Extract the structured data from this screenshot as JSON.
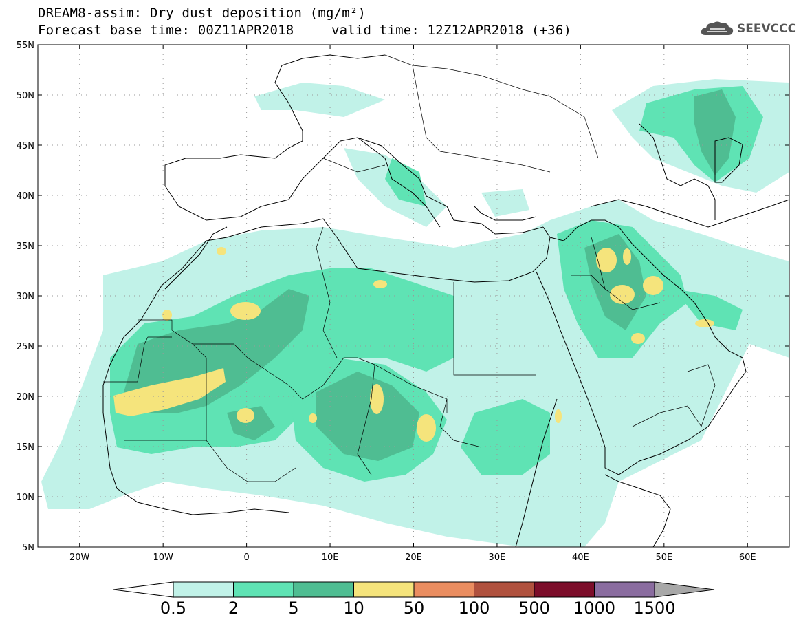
{
  "header": {
    "title_line1": "DREAM8-assim: Dry dust deposition (mg/m²)",
    "title_line2": "Forecast base time: 00Z11APR2018",
    "valid_time": "valid time: 12Z12APR2018 (+36)"
  },
  "logo": {
    "text": "SEEVCCC",
    "icon": "cloud-icon",
    "color": "#555555"
  },
  "map": {
    "lon_range": [
      -25,
      65
    ],
    "lat_range": [
      5,
      55
    ],
    "lat_ticks": [
      "5N",
      "10N",
      "15N",
      "20N",
      "25N",
      "30N",
      "35N",
      "40N",
      "45N",
      "50N",
      "55N"
    ],
    "lon_ticks": [
      "20W",
      "10W",
      "0",
      "10E",
      "20E",
      "30E",
      "40E",
      "50E",
      "60E"
    ],
    "gridlines": true
  },
  "colorbar": {
    "levels": [
      "0.5",
      "2",
      "5",
      "10",
      "50",
      "100",
      "500",
      "1000",
      "1500"
    ],
    "colors": [
      "#c1f2e8",
      "#5fe3b4",
      "#4fbd92",
      "#f5e47c",
      "#ea8d60",
      "#b0513e",
      "#7c0d2a",
      "#8a6c9f"
    ],
    "under_color": "#ffffff",
    "over_color": "#a8a8a8"
  }
}
